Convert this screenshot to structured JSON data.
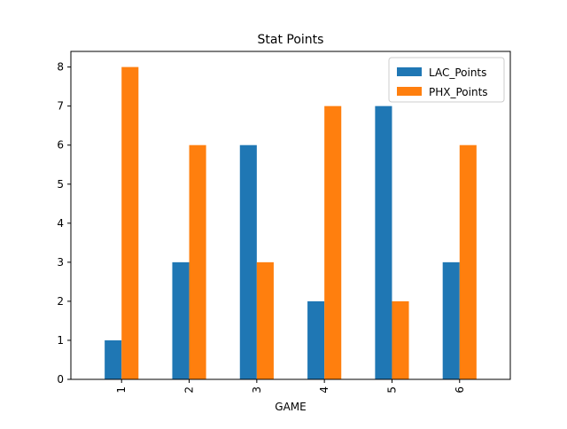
{
  "chart_data": {
    "type": "bar",
    "title": "Stat Points",
    "xlabel": "GAME",
    "ylabel": "",
    "categories": [
      "1",
      "2",
      "3",
      "4",
      "5",
      "6"
    ],
    "series": [
      {
        "name": "LAC_Points",
        "values": [
          1,
          3,
          6,
          2,
          7,
          3
        ],
        "color": "#1f77b4"
      },
      {
        "name": "PHX_Points",
        "values": [
          8,
          6,
          3,
          7,
          2,
          6
        ],
        "color": "#ff7f0e"
      }
    ],
    "ylim": [
      0,
      8.4
    ],
    "yticks": [
      0,
      1,
      2,
      3,
      4,
      5,
      6,
      7,
      8
    ],
    "x_tick_rotation": 90,
    "grid": false,
    "legend_position": "top-right"
  }
}
